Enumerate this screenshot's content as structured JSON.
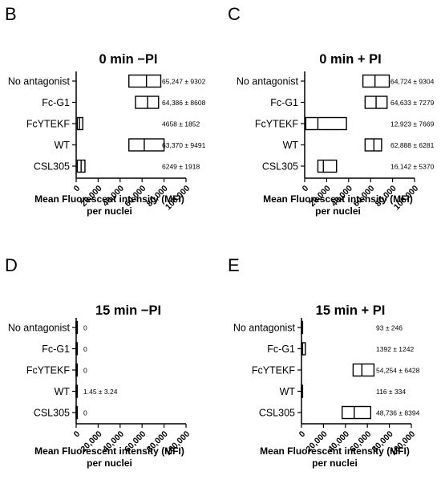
{
  "chart_data": [
    {
      "type": "box",
      "panel": "B",
      "title": "0 min  −PI",
      "xlabel": [
        "Mean Fluorescent intensity (MFI)",
        "per nuclei"
      ],
      "xlim": [
        0,
        100000
      ],
      "xticks": [
        "0",
        "20,000",
        "40,000",
        "60,000",
        "80,000",
        "100,000"
      ],
      "categories": [
        "No antagonist",
        "Fc-G1",
        "FcYTEKF",
        "WT",
        "CSL305"
      ],
      "boxes": [
        {
          "q1": 48000,
          "median": 64000,
          "q3": 77000
        },
        {
          "q1": 54000,
          "median": 65000,
          "q3": 75000
        },
        {
          "q1": 1000,
          "median": 3000,
          "q3": 6000
        },
        {
          "q1": 48000,
          "median": 62000,
          "q3": 80000
        },
        {
          "q1": 1000,
          "median": 4500,
          "q3": 8000
        }
      ],
      "annotations": [
        "65,247 ± 9302",
        "64,386 ± 8608",
        "4658 ± 1852",
        "63,370 ± 9491",
        "6249 ± 1918"
      ]
    },
    {
      "type": "box",
      "panel": "C",
      "title": "0 min + PI",
      "xlabel": [
        "Mean Fluorescent intensity (MFI)",
        "per nuclei"
      ],
      "xlim": [
        0,
        100000
      ],
      "xticks": [
        "0",
        "20,000",
        "40,000",
        "60,000",
        "80,000",
        "100,000"
      ],
      "categories": [
        "No antagonist",
        "Fc-G1",
        "FcYTEKF",
        "WT",
        "CSL305"
      ],
      "boxes": [
        {
          "q1": 53000,
          "median": 64000,
          "q3": 77000
        },
        {
          "q1": 55000,
          "median": 65000,
          "q3": 75000
        },
        {
          "q1": 1000,
          "median": 12000,
          "q3": 38000
        },
        {
          "q1": 55000,
          "median": 63000,
          "q3": 70000
        },
        {
          "q1": 12000,
          "median": 17000,
          "q3": 29000
        }
      ],
      "annotations": [
        "64,724 ± 9304",
        "64,633 ± 7279",
        "12,923 ± 7669",
        "62,888 ± 6281",
        "16,142 ± 5370"
      ]
    },
    {
      "type": "box",
      "panel": "D",
      "title": "15 min  −PI",
      "xlabel": [
        "Mean Fluorescent intensity (MFI)",
        "per nuclei"
      ],
      "xlim": [
        0,
        100000
      ],
      "xticks": [
        "0",
        "20,000",
        "40,000",
        "60,000",
        "80,000",
        "100,000"
      ],
      "categories": [
        "No antagonist",
        "Fc-G1",
        "FcYTEKF",
        "WT",
        "CSL305"
      ],
      "boxes": [
        {
          "q1": 0,
          "median": 0,
          "q3": 0
        },
        {
          "q1": 0,
          "median": 0,
          "q3": 0
        },
        {
          "q1": 0,
          "median": 0,
          "q3": 0
        },
        {
          "q1": 0,
          "median": 1,
          "q3": 5
        },
        {
          "q1": 0,
          "median": 0,
          "q3": 0
        }
      ],
      "annotations": [
        "0",
        "0",
        "0",
        "1.45 ± 3.24",
        "0"
      ]
    },
    {
      "type": "box",
      "panel": "E",
      "title": "15 min + PI",
      "xlabel": [
        "Mean Fluorescent intensity (MFI)",
        "per nuclei"
      ],
      "xlim": [
        0,
        100000
      ],
      "xticks": [
        "0",
        "20,000",
        "40,000",
        "60,000",
        "80,000",
        "100,000"
      ],
      "categories": [
        "No antagonist",
        "Fc-G1",
        "FcYTEKF",
        "WT",
        "CSL305"
      ],
      "boxes": [
        {
          "q1": 0,
          "median": 50,
          "q3": 400
        },
        {
          "q1": 0,
          "median": 1000,
          "q3": 3500
        },
        {
          "q1": 47000,
          "median": 55000,
          "q3": 66000
        },
        {
          "q1": 0,
          "median": 80,
          "q3": 500
        },
        {
          "q1": 37000,
          "median": 48000,
          "q3": 63000
        }
      ],
      "annotations": [
        "93 ± 246",
        "1392 ± 1242",
        "54,254 ± 6428",
        "116 ± 334",
        "48,736 ± 8394"
      ]
    }
  ]
}
